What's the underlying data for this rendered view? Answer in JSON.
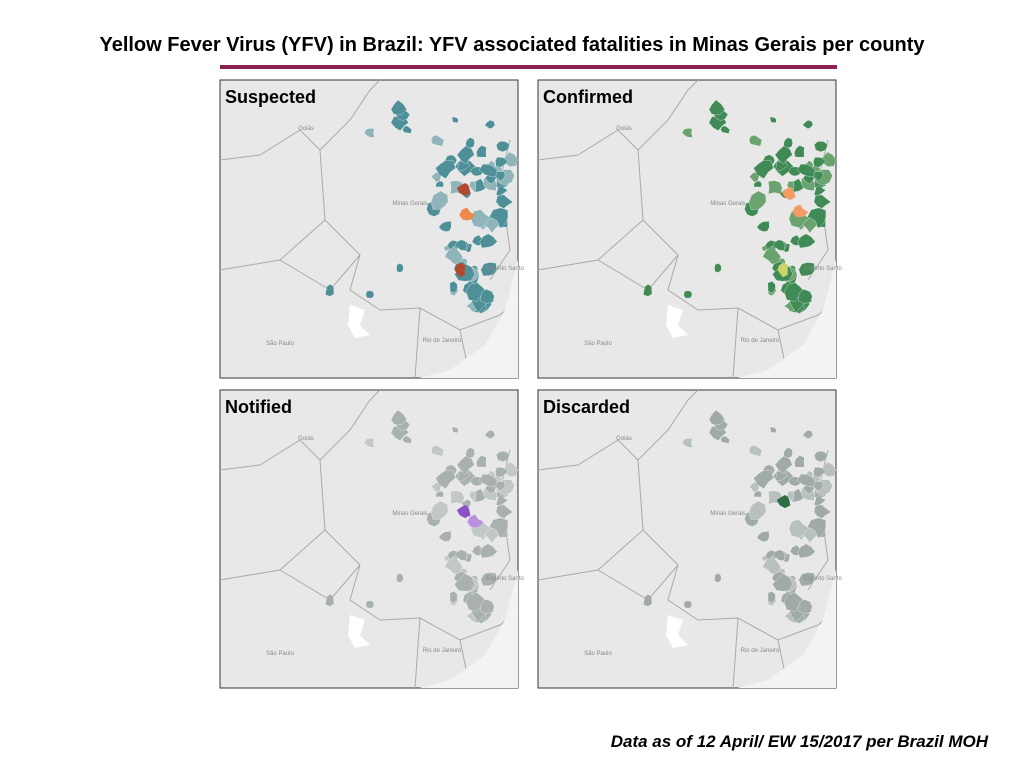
{
  "title": "Yellow Fever Virus (YFV) in Brazil: YFV associated fatalities in Minas Gerais per county",
  "panels": [
    {
      "label": "Suspected"
    },
    {
      "label": "Confirmed"
    },
    {
      "label": "Notified"
    },
    {
      "label": "Discarded"
    }
  ],
  "map_labels": [
    "Goiás",
    "Minas Gerais",
    "Espírito Santo",
    "São Paulo",
    "Rio de Janeiro"
  ],
  "footer": "Data as of 12 April/ EW 15/2017 per Brazil MOH"
}
